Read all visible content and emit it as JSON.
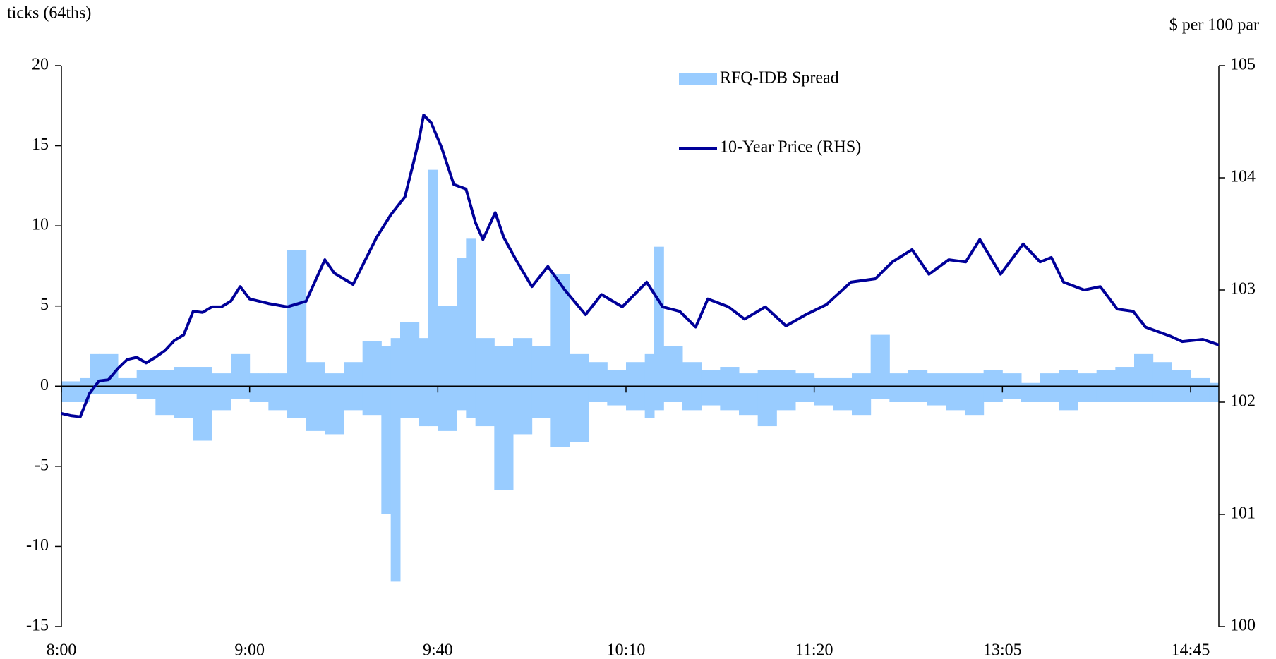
{
  "chart_data": {
    "type": "bar-line",
    "y_label": "ticks (64ths)",
    "y2_label": "$ per 100 par",
    "xlim": [
      0,
      123
    ],
    "xticks": [
      {
        "value": 0,
        "label": "8:00"
      },
      {
        "value": 20,
        "label": "9:00"
      },
      {
        "value": 40,
        "label": "9:40"
      },
      {
        "value": 60,
        "label": "10:10"
      },
      {
        "value": 80,
        "label": "11:20"
      },
      {
        "value": 100,
        "label": "13:05"
      },
      {
        "value": 120,
        "label": "14:45"
      }
    ],
    "ylim": [
      -15,
      20
    ],
    "yticks": [
      -15,
      -10,
      -5,
      0,
      5,
      10,
      15,
      20
    ],
    "y2lim": [
      100,
      105
    ],
    "y2ticks": [
      100,
      101,
      102,
      103,
      104,
      105
    ],
    "legend": "top",
    "series": [
      {
        "name": "RFQ-IDB Spread",
        "color": "#99ccff",
        "type": "bar",
        "x": [
          0,
          2,
          3,
          4,
          6,
          8,
          10,
          12,
          14,
          16,
          18,
          20,
          22,
          24,
          26,
          28,
          30,
          32,
          34,
          35,
          36,
          38,
          39,
          40,
          42,
          43,
          44,
          46,
          48,
          50,
          52,
          54,
          56,
          58,
          60,
          62,
          63,
          64,
          66,
          68,
          70,
          72,
          74,
          76,
          78,
          80,
          82,
          84,
          86,
          88,
          90,
          92,
          94,
          96,
          98,
          100,
          102,
          104,
          106,
          108,
          110,
          112,
          114,
          116,
          118,
          120,
          122
        ],
        "high": [
          0.3,
          0.5,
          2,
          2,
          0.5,
          1,
          1,
          1.2,
          1.2,
          0.8,
          2,
          0.8,
          0.8,
          8.5,
          1.5,
          0.8,
          1.5,
          2.8,
          2.5,
          3,
          4,
          3,
          13.5,
          5,
          8,
          9.2,
          3,
          2.5,
          3,
          2.5,
          7,
          2,
          1.5,
          1,
          1.5,
          2,
          8.7,
          2.5,
          1.5,
          1,
          1.2,
          0.8,
          1,
          1,
          0.8,
          0.5,
          0.5,
          0.8,
          3.2,
          0.8,
          1,
          0.8,
          0.8,
          0.8,
          1,
          0.8,
          0.2,
          0.8,
          1,
          0.8,
          1,
          1.2,
          2,
          1.5,
          1,
          0.5,
          0.2
        ],
        "low": [
          -1,
          -1,
          -0.5,
          -0.5,
          -0.5,
          -0.8,
          -1.8,
          -2,
          -3.4,
          -1.5,
          -0.8,
          -1,
          -1.5,
          -2,
          -2.8,
          -3,
          -1.5,
          -1.8,
          -8,
          -12.2,
          -2,
          -2.5,
          -2.5,
          -2.8,
          -1.5,
          -2,
          -2.5,
          -6.5,
          -3,
          -2,
          -3.8,
          -3.5,
          -1,
          -1.2,
          -1.5,
          -2,
          -1.5,
          -1,
          -1.5,
          -1.2,
          -1.5,
          -1.8,
          -2.5,
          -1.5,
          -1,
          -1.2,
          -1.5,
          -1.8,
          -0.8,
          -1,
          -1,
          -1.2,
          -1.5,
          -1.8,
          -1,
          -0.8,
          -1,
          -1,
          -1.5,
          -1,
          -1,
          -1,
          -1,
          -1,
          -1,
          -1,
          -1
        ]
      },
      {
        "name": "10-Year Price (RHS)",
        "color": "#000099",
        "type": "line",
        "axis": "y2",
        "x": [
          0,
          1,
          2,
          3,
          4,
          5,
          6,
          7,
          8,
          9,
          10,
          11,
          12,
          13,
          14,
          15,
          16,
          17,
          18,
          19,
          20,
          22,
          24,
          26,
          28,
          29,
          31,
          33.5,
          35,
          36.5,
          37.4,
          38,
          38.5,
          39.3,
          40.4,
          41.7,
          43,
          44,
          44.8,
          46.1,
          47,
          48.3,
          50,
          51.7,
          53.5,
          55.7,
          57.4,
          59.6,
          62.2,
          63.9,
          65.7,
          67.4,
          68.7,
          70.9,
          72.6,
          74.8,
          77,
          79.1,
          81.3,
          83.9,
          86.5,
          88.3,
          90.4,
          92.2,
          94.3,
          96.1,
          97.6,
          99.8,
          102.2,
          104,
          105.2,
          106.5,
          108.7,
          110.4,
          112.2,
          113.9,
          115.2,
          117.8,
          119.1,
          121.3,
          123
        ],
        "values": [
          101.9,
          101.88,
          101.87,
          102.08,
          102.19,
          102.2,
          102.3,
          102.38,
          102.4,
          102.35,
          102.4,
          102.46,
          102.55,
          102.6,
          102.81,
          102.8,
          102.85,
          102.85,
          102.9,
          103.03,
          102.92,
          102.88,
          102.85,
          102.9,
          103.27,
          103.15,
          103.05,
          103.47,
          103.67,
          103.83,
          104.13,
          104.34,
          104.56,
          104.49,
          104.27,
          103.94,
          103.9,
          103.6,
          103.45,
          103.69,
          103.47,
          103.27,
          103.03,
          103.21,
          103.0,
          102.78,
          102.96,
          102.85,
          103.07,
          102.85,
          102.81,
          102.67,
          102.92,
          102.85,
          102.74,
          102.85,
          102.68,
          102.78,
          102.87,
          103.07,
          103.1,
          103.25,
          103.36,
          103.14,
          103.27,
          103.25,
          103.45,
          103.14,
          103.41,
          103.25,
          103.29,
          103.07,
          103.0,
          103.03,
          102.83,
          102.81,
          102.67,
          102.59,
          102.54,
          102.56,
          102.51
        ]
      }
    ]
  }
}
